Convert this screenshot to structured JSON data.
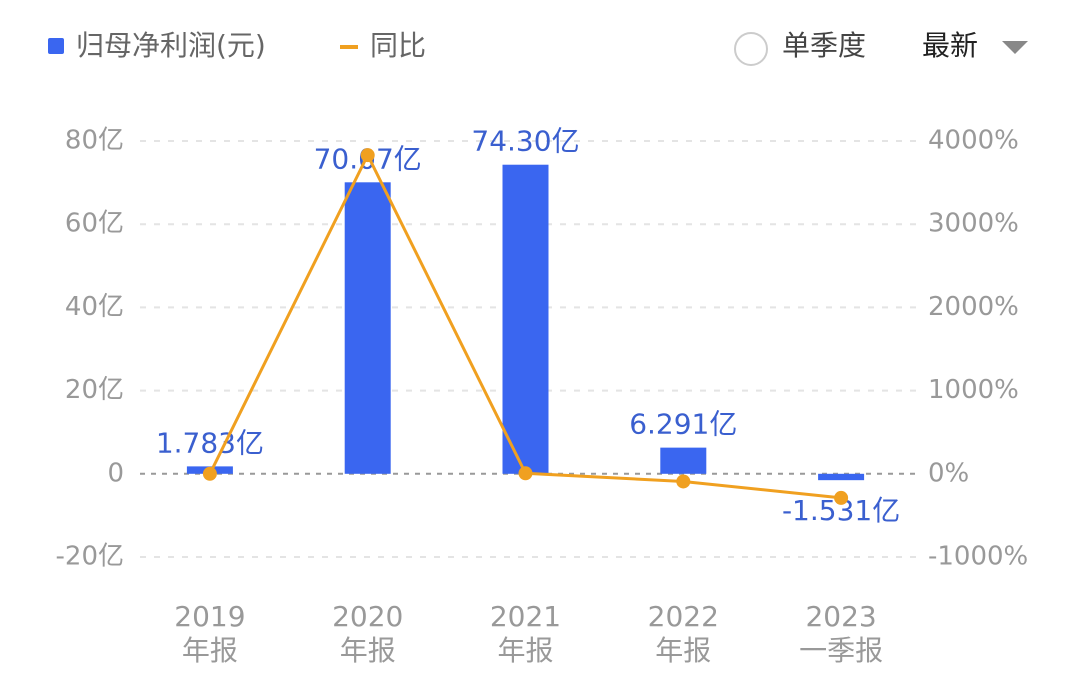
{
  "controls": {
    "single_quarter": "单季度",
    "period": "最新"
  },
  "chart_data": {
    "type": "bar-line",
    "categories": [
      [
        "2019",
        "年报"
      ],
      [
        "2020",
        "年报"
      ],
      [
        "2021",
        "年报"
      ],
      [
        "2022",
        "年报"
      ],
      [
        "2023",
        "一季报"
      ]
    ],
    "series": [
      {
        "name": "归母净利润(元)",
        "color": "#3a66f0",
        "values": [
          1.783,
          70.07,
          74.3,
          6.291,
          -1.531
        ],
        "value_labels": [
          "1.783亿",
          "70.07亿",
          "74.30亿",
          "6.291亿",
          "-1.531亿"
        ]
      },
      {
        "name": "同比",
        "color": "#f0a020",
        "axis": "y2",
        "values": [
          0,
          3830,
          6,
          -92,
          -290
        ]
      }
    ],
    "ylim": [
      -20,
      80
    ],
    "yticks": [
      {
        "value": -20,
        "label": "-20亿"
      },
      0,
      {
        "value": 20,
        "label": "20亿"
      },
      {
        "value": 40,
        "label": "40亿"
      },
      {
        "value": 60,
        "label": "60亿"
      },
      {
        "value": 80,
        "label": "80亿"
      }
    ],
    "y2lim": [
      -1000,
      4000
    ],
    "y2ticks": [
      {
        "value": -1000,
        "label": "-1000%"
      },
      {
        "value": 0,
        "label": "0%"
      },
      {
        "value": 1000,
        "label": "1000%"
      },
      {
        "value": 2000,
        "label": "2000%"
      },
      {
        "value": 3000,
        "label": "3000%"
      },
      {
        "value": 4000,
        "label": "4000%"
      }
    ],
    "grid": true
  }
}
